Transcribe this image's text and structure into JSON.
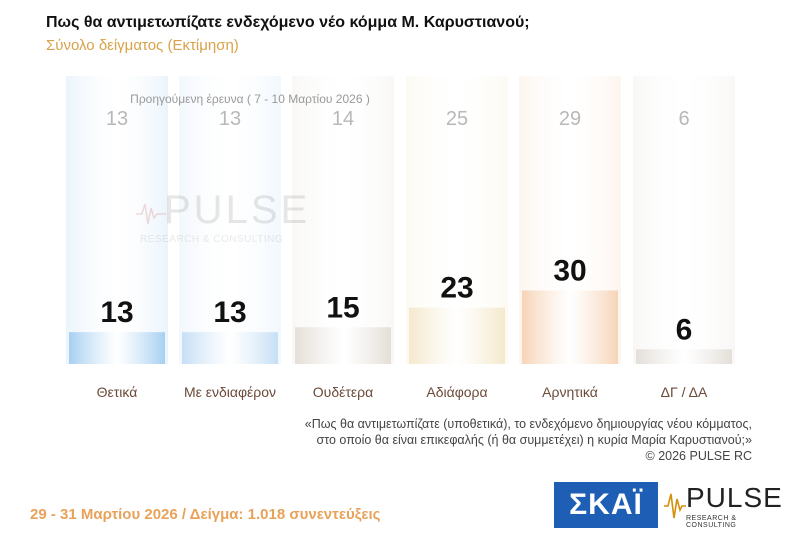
{
  "header": {
    "title": "Πως θα αντιμετωπίζατε ενδεχόμενο νέο κόμμα Μ. Καρυστιανού;",
    "subtitle": "Σύνολο δείγματος (Εκτίμηση)"
  },
  "chart_data": {
    "type": "bar",
    "categories": [
      "Θετικά",
      "Με ενδιαφέρον",
      "Ουδέτερα",
      "Αδιάφορα",
      "Αρνητικά",
      "ΔΓ / ΔΑ"
    ],
    "values": [
      13,
      13,
      15,
      23,
      30,
      6
    ],
    "previous_label": "Προηγούμενη έρευνα ( 7 - 10 Μαρτίου 2026 )",
    "previous_values": [
      13,
      13,
      14,
      25,
      29,
      6
    ],
    "colors": [
      "#8fc3ee",
      "#b7d7f3",
      "#ddd6cc",
      "#f2e3bf",
      "#f4c9a5",
      "#dcd6cf"
    ]
  },
  "note": {
    "line1": "«Πως θα αντιμετωπίζατε (υποθετικά), το ενδεχόμενο δημιουργίας νέου κόμματος,",
    "line2": "στο οποίο θα είναι επικεφαλής (ή θα συμμετέχει) η κυρία Μαρία Καρυστιανού;»",
    "copyright": "© 2026 PULSE RC"
  },
  "footer": {
    "fieldwork": "29 - 31 Μαρτίου 2026 / Δείγμα: 1.018 συνεντεύξεις"
  },
  "logos": {
    "skai": "ΣΚΑΪ",
    "pulse": "PULSE",
    "pulse_sub": "RESEARCH & CONSULTING"
  }
}
